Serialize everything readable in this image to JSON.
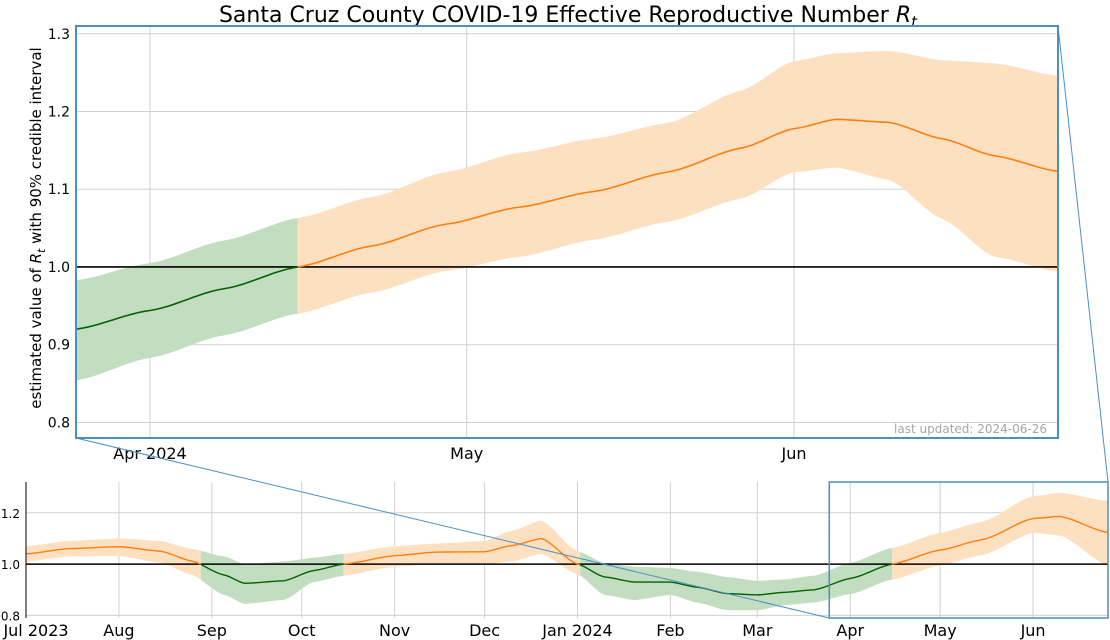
{
  "chart_data": [
    {
      "id": "zoom",
      "type": "area",
      "title": "Santa Cruz County COVID-19 Effective Reproductive Number ",
      "title_math": "R",
      "title_sub": "t",
      "ylabel": {
        "pre": "estimated value of ",
        "math": "R",
        "sub": "t",
        "post": " with 90% credible interval"
      },
      "annotation": "last updated: 2024-06-26",
      "x_range": [
        "2024-03-25",
        "2024-06-26"
      ],
      "ylim": [
        0.78,
        1.31
      ],
      "x_ticks": [
        {
          "date": "2024-04-01",
          "label": "Apr 2024"
        },
        {
          "date": "2024-05-01",
          "label": "May"
        },
        {
          "date": "2024-06-01",
          "label": "Jun"
        }
      ],
      "y_ticks": [
        "0.8",
        "0.9",
        "1.0",
        "1.1",
        "1.2",
        "1.3"
      ],
      "reference_line": 1.0,
      "grid": true,
      "colors": {
        "above": "#ff7f0e",
        "above_band": "#fde0c0",
        "below": "#006400",
        "below_band": "#c3ddc0",
        "frame": "#4a90c4"
      },
      "series": [
        {
          "x": [
            "2024-03-25",
            "2024-04-01",
            "2024-04-08",
            "2024-04-15",
            "2024-04-22",
            "2024-04-29",
            "2024-05-06",
            "2024-05-13",
            "2024-05-20",
            "2024-05-27",
            "2024-06-01",
            "2024-06-05",
            "2024-06-10",
            "2024-06-15",
            "2024-06-20",
            "2024-06-26"
          ],
          "y": [
            0.92,
            0.944,
            0.972,
            1.0,
            1.027,
            1.055,
            1.077,
            1.097,
            1.122,
            1.153,
            1.178,
            1.19,
            1.186,
            1.165,
            1.143,
            1.123
          ],
          "lower": [
            0.854,
            0.883,
            0.912,
            0.94,
            0.967,
            0.995,
            1.013,
            1.035,
            1.058,
            1.088,
            1.122,
            1.128,
            1.112,
            1.062,
            1.013,
            0.994
          ],
          "upper": [
            0.983,
            1.005,
            1.034,
            1.063,
            1.09,
            1.122,
            1.147,
            1.165,
            1.185,
            1.227,
            1.265,
            1.275,
            1.278,
            1.266,
            1.262,
            1.246
          ]
        }
      ]
    },
    {
      "id": "overview",
      "type": "area",
      "x_range": [
        "2023-07-01",
        "2024-06-26"
      ],
      "ylim": [
        0.79,
        1.32
      ],
      "x_ticks": [
        {
          "date": "2023-07-01",
          "label": "Jul 2023"
        },
        {
          "date": "2023-08-01",
          "label": "Aug"
        },
        {
          "date": "2023-09-01",
          "label": "Sep"
        },
        {
          "date": "2023-10-01",
          "label": "Oct"
        },
        {
          "date": "2023-11-01",
          "label": "Nov"
        },
        {
          "date": "2023-12-01",
          "label": "Dec"
        },
        {
          "date": "2024-01-01",
          "label": "Jan 2024"
        },
        {
          "date": "2024-02-01",
          "label": "Feb"
        },
        {
          "date": "2024-03-01",
          "label": "Mar"
        },
        {
          "date": "2024-04-01",
          "label": "Apr"
        },
        {
          "date": "2024-05-01",
          "label": "May"
        },
        {
          "date": "2024-06-01",
          "label": "Jun"
        }
      ],
      "y_ticks": [
        "0.8",
        "1.0",
        "1.2"
      ],
      "reference_line": 1.0,
      "grid": true,
      "highlight_range": [
        "2024-03-25",
        "2024-06-26"
      ],
      "series": [
        {
          "x": [
            "2023-07-01",
            "2023-07-15",
            "2023-08-01",
            "2023-08-15",
            "2023-08-25",
            "2023-09-05",
            "2023-09-12",
            "2023-09-25",
            "2023-10-05",
            "2023-10-15",
            "2023-11-01",
            "2023-11-15",
            "2023-12-01",
            "2023-12-10",
            "2023-12-20",
            "2024-01-01",
            "2024-01-10",
            "2024-01-20",
            "2024-02-01",
            "2024-02-10",
            "2024-02-20",
            "2024-03-01",
            "2024-03-10",
            "2024-03-20",
            "2024-04-01",
            "2024-04-15",
            "2024-05-01",
            "2024-05-15",
            "2024-06-01",
            "2024-06-10",
            "2024-06-26"
          ],
          "y": [
            1.04,
            1.06,
            1.068,
            1.05,
            1.013,
            0.958,
            0.925,
            0.935,
            0.975,
            1.0,
            1.033,
            1.047,
            1.048,
            1.072,
            1.1,
            1.0,
            0.95,
            0.93,
            0.93,
            0.91,
            0.885,
            0.88,
            0.89,
            0.9,
            0.944,
            1.0,
            1.055,
            1.095,
            1.178,
            1.186,
            1.123
          ],
          "lower": [
            1.01,
            1.03,
            1.032,
            1.005,
            0.96,
            0.88,
            0.845,
            0.86,
            0.93,
            0.955,
            0.99,
            1.0,
            1.0,
            1.01,
            1.04,
            0.96,
            0.88,
            0.86,
            0.88,
            0.85,
            0.82,
            0.82,
            0.84,
            0.85,
            0.883,
            0.94,
            0.995,
            1.035,
            1.122,
            1.112,
            0.994
          ],
          "upper": [
            1.07,
            1.09,
            1.1,
            1.09,
            1.06,
            1.03,
            1.0,
            1.01,
            1.025,
            1.04,
            1.07,
            1.08,
            1.09,
            1.13,
            1.17,
            1.05,
            1.005,
            0.99,
            0.985,
            0.97,
            0.95,
            0.935,
            0.94,
            0.955,
            1.005,
            1.063,
            1.122,
            1.165,
            1.265,
            1.278,
            1.246
          ]
        }
      ]
    }
  ]
}
